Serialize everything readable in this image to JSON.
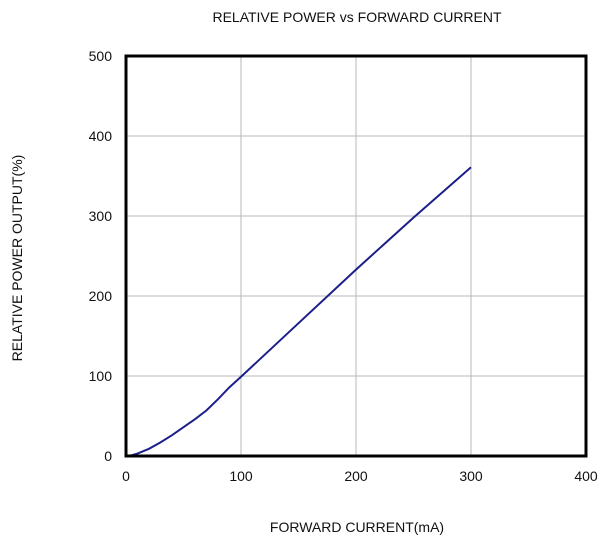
{
  "chart_data": {
    "type": "line",
    "title": "RELATIVE POWER vs FORWARD CURRENT",
    "xlabel": "FORWARD CURRENT(mA)",
    "ylabel": "RELATIVE POWER OUTPUT(%)",
    "xlim": [
      0,
      400
    ],
    "ylim": [
      0,
      500
    ],
    "x_ticks": [
      "0",
      "100",
      "200",
      "300",
      "400"
    ],
    "y_ticks": [
      "0",
      "100",
      "200",
      "300",
      "400",
      "500"
    ],
    "grid": true,
    "line_color": "#1c1f8a",
    "series": [
      {
        "x": [
          0,
          5,
          10,
          20,
          30,
          40,
          50,
          60,
          70,
          80,
          90,
          100,
          150,
          200,
          250,
          300
        ],
        "y": [
          0,
          1,
          3,
          9,
          17,
          26,
          36,
          46,
          57,
          71,
          86,
          99,
          166,
          233,
          298,
          361
        ]
      }
    ]
  }
}
